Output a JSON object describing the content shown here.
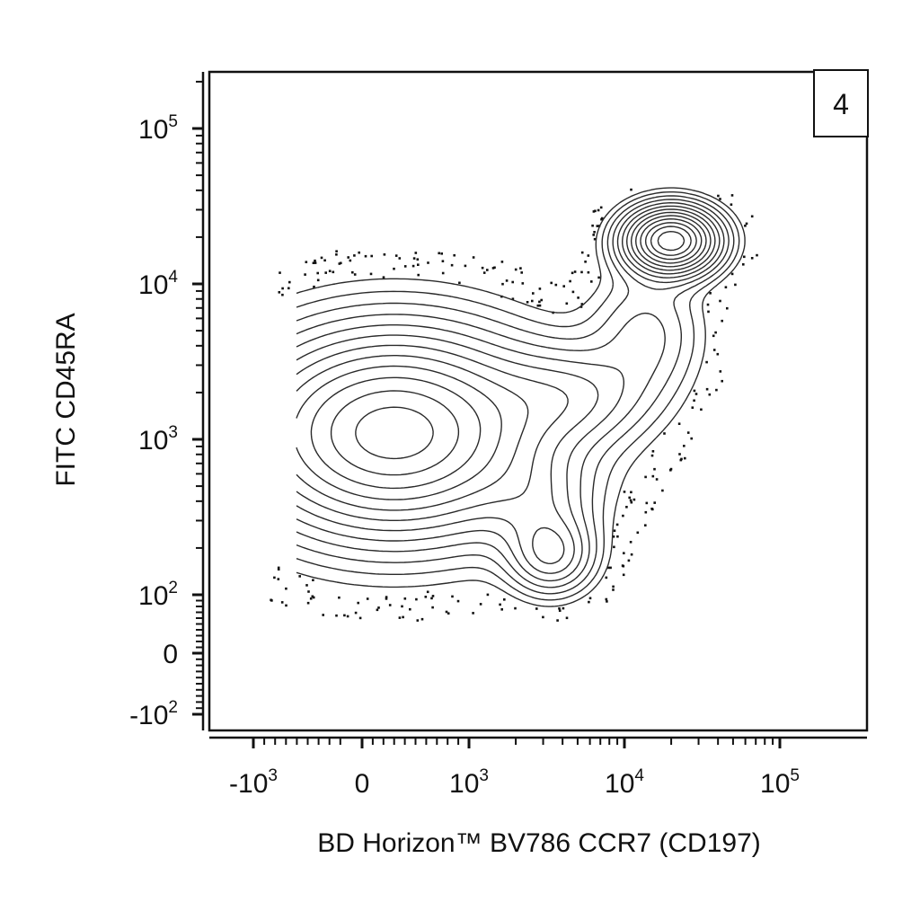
{
  "chart_data": {
    "type": "contour",
    "xlabel": "BD Horizon™ BV786 CCR7 (CD197)",
    "ylabel": "FITC CD45RA",
    "gate_label": "4",
    "xscale": "biexponential",
    "yscale": "biexponential",
    "x_ticks": [
      {
        "value": -1000,
        "base": "-10",
        "exp": "3"
      },
      {
        "value": 0,
        "base": "0",
        "exp": ""
      },
      {
        "value": 1000,
        "base": "10",
        "exp": "3"
      },
      {
        "value": 10000,
        "base": "10",
        "exp": "4"
      },
      {
        "value": 100000,
        "base": "10",
        "exp": "5"
      }
    ],
    "y_ticks": [
      {
        "value": -100,
        "base": "-10",
        "exp": "2"
      },
      {
        "value": 0,
        "base": "0",
        "exp": ""
      },
      {
        "value": 100,
        "base": "10",
        "exp": "2"
      },
      {
        "value": 1000,
        "base": "10",
        "exp": "3"
      },
      {
        "value": 10000,
        "base": "10",
        "exp": "4"
      },
      {
        "value": 100000,
        "base": "10",
        "exp": "5"
      }
    ],
    "populations": [
      {
        "name": "",
        "x_center": 300,
        "y_center": 1100,
        "x_sd": 0.45,
        "y_sd": 0.3
      },
      {
        "name": "",
        "x_center": 20000,
        "y_center": 19000,
        "x_sd": 0.14,
        "y_sd": 0.1
      },
      {
        "name": "",
        "x_center": 3400,
        "y_center": 180,
        "x_sd": 0.13,
        "y_sd": 0.12
      }
    ]
  },
  "colors": {
    "contour": "#2a2a2a",
    "axis": "#111111",
    "background": "#ffffff"
  }
}
